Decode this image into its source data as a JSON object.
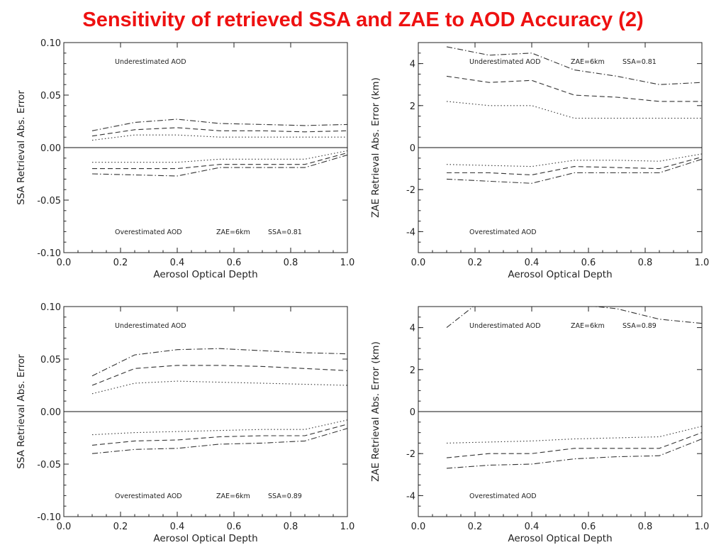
{
  "slide": {
    "title": "Sensitivity of retrieved SSA and ZAE to AOD Accuracy (2)"
  },
  "chart_data": [
    {
      "type": "line",
      "xlabel": "Aerosol Optical Depth",
      "ylabel": "SSA Retrieval Abs. Error",
      "xlim": [
        0.0,
        1.0
      ],
      "ylim": [
        -0.1,
        0.1
      ],
      "xticks": [
        "0.0",
        "0.2",
        "0.4",
        "0.6",
        "0.8",
        "1.0"
      ],
      "yticks": [
        "-0.10",
        "-0.05",
        "0.00",
        "0.05",
        "0.10"
      ],
      "annotations": {
        "top": "Underestimated AOD",
        "bottom": "Overestimated AOD",
        "zae": "ZAE=6km",
        "ssa": "SSA=0.81"
      },
      "x": [
        0.1,
        0.25,
        0.4,
        0.55,
        0.7,
        0.85,
        1.0
      ],
      "series": [
        {
          "style": "dashdot",
          "values": [
            0.016,
            0.024,
            0.027,
            0.023,
            0.022,
            0.021,
            0.022
          ]
        },
        {
          "style": "dashed",
          "values": [
            0.011,
            0.017,
            0.019,
            0.016,
            0.016,
            0.015,
            0.016
          ]
        },
        {
          "style": "dotted",
          "values": [
            0.007,
            0.012,
            0.012,
            0.01,
            0.01,
            0.01,
            0.01
          ]
        },
        {
          "style": "dotted",
          "values": [
            -0.014,
            -0.014,
            -0.014,
            -0.011,
            -0.011,
            -0.011,
            -0.003
          ]
        },
        {
          "style": "dashed",
          "values": [
            -0.02,
            -0.02,
            -0.02,
            -0.016,
            -0.016,
            -0.016,
            -0.005
          ]
        },
        {
          "style": "dashdot",
          "values": [
            -0.025,
            -0.026,
            -0.027,
            -0.019,
            -0.019,
            -0.019,
            -0.007
          ]
        }
      ]
    },
    {
      "type": "line",
      "xlabel": "Aerosol Optical Depth",
      "ylabel": "ZAE Retrieval Abs. Error (km)",
      "xlim": [
        0.0,
        1.0
      ],
      "ylim": [
        -5,
        5
      ],
      "xticks": [
        "0.0",
        "0.2",
        "0.4",
        "0.6",
        "0.8",
        "1.0"
      ],
      "yticks": [
        "-4",
        "-2",
        "0",
        "2",
        "4"
      ],
      "annotations": {
        "top": "Underestimated AOD",
        "bottom": "Overestimated AOD",
        "zae": "ZAE=6km",
        "ssa": "SSA=0.81"
      },
      "x": [
        0.1,
        0.25,
        0.4,
        0.55,
        0.7,
        0.85,
        1.0
      ],
      "series": [
        {
          "style": "dashdot",
          "values": [
            4.8,
            4.4,
            4.5,
            3.7,
            3.4,
            3.0,
            3.1
          ]
        },
        {
          "style": "dashed",
          "values": [
            3.4,
            3.1,
            3.2,
            2.5,
            2.4,
            2.2,
            2.2
          ]
        },
        {
          "style": "dotted",
          "values": [
            2.2,
            2.0,
            2.0,
            1.4,
            1.4,
            1.4,
            1.4
          ]
        },
        {
          "style": "dotted",
          "values": [
            -0.8,
            -0.85,
            -0.9,
            -0.6,
            -0.6,
            -0.65,
            -0.3
          ]
        },
        {
          "style": "dashed",
          "values": [
            -1.2,
            -1.2,
            -1.3,
            -0.9,
            -0.95,
            -1.0,
            -0.45
          ]
        },
        {
          "style": "dashdot",
          "values": [
            -1.5,
            -1.6,
            -1.7,
            -1.2,
            -1.2,
            -1.2,
            -0.55
          ]
        }
      ]
    },
    {
      "type": "line",
      "xlabel": "Aerosol Optical Depth",
      "ylabel": "SSA Retrieval Abs. Error",
      "xlim": [
        0.0,
        1.0
      ],
      "ylim": [
        -0.1,
        0.1
      ],
      "xticks": [
        "0.0",
        "0.2",
        "0.4",
        "0.6",
        "0.8",
        "1.0"
      ],
      "yticks": [
        "-0.10",
        "-0.05",
        "0.00",
        "0.05",
        "0.10"
      ],
      "annotations": {
        "top": "Underestimated AOD",
        "bottom": "Overestimated AOD",
        "zae": "ZAE=6km",
        "ssa": "SSA=0.89"
      },
      "x": [
        0.1,
        0.25,
        0.4,
        0.55,
        0.7,
        0.85,
        1.0
      ],
      "series": [
        {
          "style": "dashdot",
          "values": [
            0.034,
            0.054,
            0.059,
            0.06,
            0.058,
            0.056,
            0.055
          ]
        },
        {
          "style": "dashed",
          "values": [
            0.025,
            0.041,
            0.044,
            0.044,
            0.043,
            0.041,
            0.039
          ]
        },
        {
          "style": "dotted",
          "values": [
            0.017,
            0.027,
            0.029,
            0.028,
            0.027,
            0.026,
            0.025
          ]
        },
        {
          "style": "dotted",
          "values": [
            -0.022,
            -0.02,
            -0.019,
            -0.018,
            -0.017,
            -0.017,
            -0.008
          ]
        },
        {
          "style": "dashed",
          "values": [
            -0.032,
            -0.028,
            -0.027,
            -0.024,
            -0.023,
            -0.023,
            -0.012
          ]
        },
        {
          "style": "dashdot",
          "values": [
            -0.04,
            -0.036,
            -0.035,
            -0.031,
            -0.03,
            -0.028,
            -0.016
          ]
        }
      ]
    },
    {
      "type": "line",
      "xlabel": "Aerosol Optical Depth",
      "ylabel": "ZAE Retrieval Abs. Error (km)",
      "xlim": [
        0.0,
        1.0
      ],
      "ylim": [
        -5,
        5
      ],
      "xticks": [
        "0.0",
        "0.2",
        "0.4",
        "0.6",
        "0.8",
        "1.0"
      ],
      "yticks": [
        "-4",
        "-2",
        "0",
        "2",
        "4"
      ],
      "annotations": {
        "top": "Underestimated AOD",
        "bottom": "Overestimated AOD",
        "zae": "ZAE=6km",
        "ssa": "SSA=0.89"
      },
      "x": [
        0.1,
        0.25,
        0.4,
        0.55,
        0.7,
        0.85,
        1.0
      ],
      "series": [
        {
          "style": "dashdot",
          "values": [
            4.0,
            5.6,
            5.5,
            5.1,
            4.9,
            4.4,
            4.2
          ]
        },
        {
          "style": "dotted",
          "values": [
            -1.5,
            -1.45,
            -1.4,
            -1.3,
            -1.25,
            -1.2,
            -0.7
          ]
        },
        {
          "style": "dashed",
          "values": [
            -2.2,
            -2.0,
            -2.0,
            -1.75,
            -1.75,
            -1.75,
            -1.0
          ]
        },
        {
          "style": "dashdot",
          "values": [
            -2.7,
            -2.55,
            -2.5,
            -2.25,
            -2.15,
            -2.1,
            -1.3
          ]
        }
      ]
    }
  ]
}
